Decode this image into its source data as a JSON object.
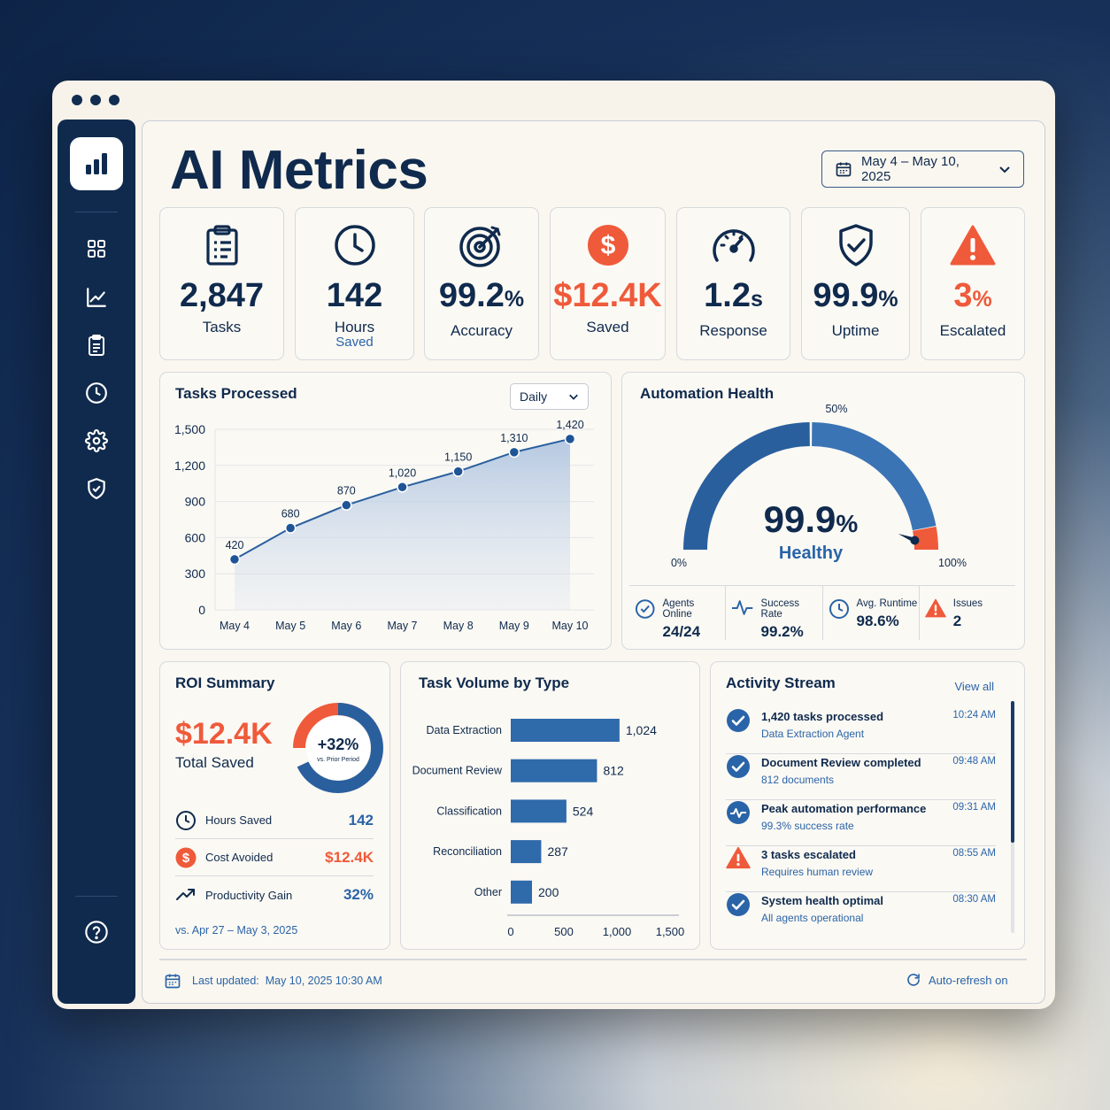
{
  "page": {
    "title": "AI Metrics"
  },
  "date_range": {
    "label": "May 4 – May 10, 2025"
  },
  "kpis": [
    {
      "value": "2,847",
      "unit": "",
      "label": "Tasks",
      "sub": "",
      "icon": "clipboard-icon"
    },
    {
      "value": "142",
      "unit": "",
      "label": "Hours",
      "sub": "Saved",
      "icon": "clock-icon"
    },
    {
      "value": "99.2",
      "unit": "%",
      "label": "Accuracy",
      "sub": "",
      "icon": "target-icon"
    },
    {
      "value": "$12.4K",
      "unit": "",
      "label": "Saved",
      "sub": "",
      "icon": "dollar-icon"
    },
    {
      "value": "1.2",
      "unit": "s",
      "label": "Response",
      "sub": "",
      "icon": "speedometer-icon"
    },
    {
      "value": "99.9",
      "unit": "%",
      "label": "Uptime",
      "sub": "",
      "icon": "shield-check-icon"
    },
    {
      "value": "3",
      "unit": "%",
      "label": "Escalated",
      "sub": "",
      "icon": "warning-icon"
    }
  ],
  "colors": {
    "navy": "#0f2a4d",
    "blue": "#2a64a8",
    "accent_red": "#ef5a3a",
    "gauge_blue": "#2f6aab"
  },
  "tasks_processed": {
    "title": "Tasks Processed",
    "period": "Daily"
  },
  "chart_data": [
    {
      "type": "area",
      "title": "Tasks Processed",
      "categories": [
        "May 4",
        "May 5",
        "May 6",
        "May 7",
        "May 8",
        "May 9",
        "May 10"
      ],
      "values": [
        420,
        680,
        870,
        1020,
        1150,
        1310,
        1420
      ],
      "data_labels": [
        "420",
        "680",
        "870",
        "1,020",
        "1,150",
        "1,310",
        "1,420"
      ],
      "yticks": [
        "0",
        "300",
        "600",
        "900",
        "1,200",
        "1,500"
      ],
      "ylim": [
        0,
        1500
      ],
      "grid": true
    },
    {
      "type": "bar",
      "orientation": "horizontal",
      "title": "Task Volume by Type",
      "categories": [
        "Data Extraction",
        "Document Review",
        "Classification",
        "Reconciliation",
        "Other"
      ],
      "values": [
        1024,
        812,
        524,
        287,
        200
      ],
      "data_labels": [
        "1,024",
        "812",
        "524",
        "287",
        "200"
      ],
      "xticks": [
        "0",
        "500",
        "1,000",
        "1,500"
      ],
      "xlim": [
        0,
        1500
      ]
    },
    {
      "type": "pie",
      "title": "ROI Summary",
      "values": [
        32,
        68
      ],
      "center_label": "+32%",
      "center_sub": "vs. Prior Period"
    }
  ],
  "automation_health": {
    "title": "Automation Health",
    "value": "99.9",
    "unit": "%",
    "status": "Healthy",
    "gauge_fraction": 0.999,
    "labels": {
      "min": "0%",
      "mid": "50%",
      "max": "100%"
    },
    "stats": [
      {
        "label": "Agents Online",
        "value": "24/24",
        "icon": "check-circle-icon"
      },
      {
        "label": "Success Rate",
        "value": "99.2%",
        "icon": "pulse-icon"
      },
      {
        "label": "Avg. Runtime",
        "value": "98.6%",
        "icon": "clock-icon"
      },
      {
        "label": "Issues",
        "value": "2",
        "icon": "warning-icon"
      }
    ]
  },
  "roi": {
    "title": "ROI Summary",
    "total": "$12.4K",
    "total_label": "Total Saved",
    "ring_value": "+32%",
    "ring_sub": "vs. Prior Period",
    "rows": [
      {
        "label": "Hours Saved",
        "value": "142",
        "icon": "clock-icon"
      },
      {
        "label": "Cost Avoided",
        "value": "$12.4K",
        "icon": "dollar-icon"
      },
      {
        "label": "Productivity Gain",
        "value": "32%",
        "icon": "trend-up-icon"
      }
    ],
    "footnote": "vs. Apr 27 – May 3, 2025"
  },
  "task_volume": {
    "title": "Task Volume by Type"
  },
  "activity": {
    "title": "Activity Stream",
    "view_all": "View all",
    "items": [
      {
        "title": "1,420 tasks processed",
        "sub": "Data Extraction Agent",
        "time": "10:24 AM",
        "icon": "check-circle-icon"
      },
      {
        "title": "Document Review completed",
        "sub": "812 documents",
        "time": "09:48 AM",
        "icon": "check-circle-icon"
      },
      {
        "title": "Peak automation performance",
        "sub": "99.3% success rate",
        "time": "09:31 AM",
        "icon": "pulse-icon"
      },
      {
        "title": "3 tasks escalated",
        "sub": "Requires human review",
        "time": "08:55 AM",
        "icon": "warning-icon"
      },
      {
        "title": "System health optimal",
        "sub": "All agents operational",
        "time": "08:30 AM",
        "icon": "check-circle-icon"
      }
    ]
  },
  "footer": {
    "updated_label": "Last updated:",
    "updated_value": "May 10, 2025 10:30 AM",
    "auto_refresh": "Auto-refresh on"
  }
}
